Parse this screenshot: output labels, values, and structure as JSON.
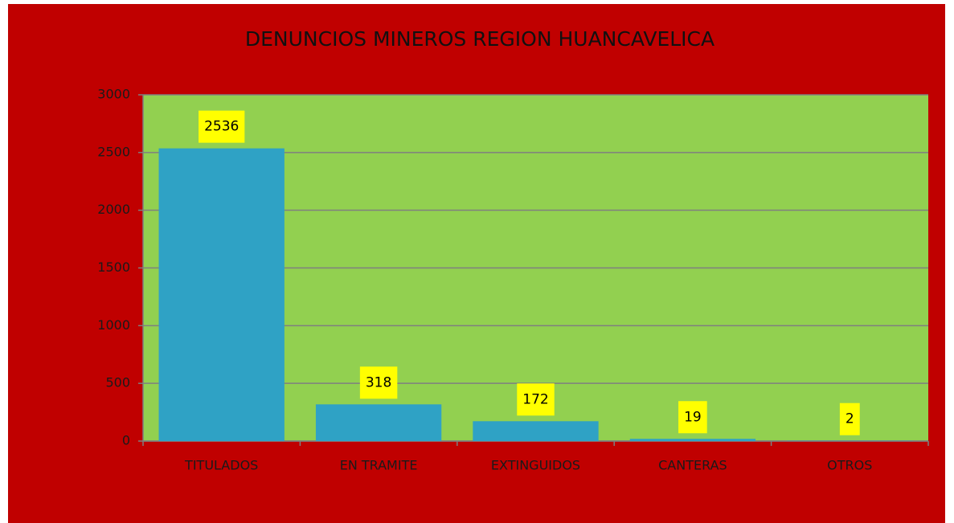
{
  "chart_data": {
    "type": "bar",
    "title": "DENUNCIOS MINEROS REGION HUANCAVELICA",
    "categories": [
      "TITULADOS",
      "EN TRAMITE",
      "EXTINGUIDOS",
      "CANTERAS",
      "OTROS"
    ],
    "values": [
      2536,
      318,
      172,
      19,
      2
    ],
    "color": "#2fa2c5",
    "ylim": [
      0,
      3000
    ],
    "yticks": [
      0,
      500,
      1000,
      1500,
      2000,
      2500,
      3000
    ],
    "grid": true
  }
}
